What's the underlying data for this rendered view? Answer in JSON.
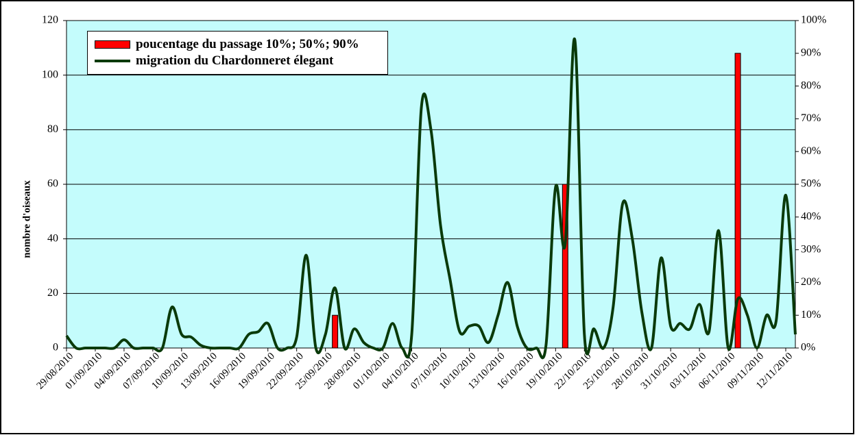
{
  "chart_data": {
    "type": "combo",
    "ylabel": "nombre d'oiseaux",
    "categories": [
      "29/08/2010",
      null,
      null,
      "01/09/2010",
      null,
      null,
      "04/09/2010",
      null,
      null,
      "07/09/2010",
      null,
      null,
      "10/09/2010",
      null,
      null,
      "13/09/2010",
      null,
      null,
      "16/09/2010",
      null,
      null,
      "19/09/2010",
      null,
      null,
      "22/09/2010",
      null,
      null,
      "25/09/2010",
      null,
      null,
      "28/09/2010",
      null,
      null,
      "01/10/2010",
      null,
      null,
      "04/10/2010",
      null,
      null,
      "07/10/2010",
      null,
      null,
      "10/10/2010",
      null,
      null,
      "13/10/2010",
      null,
      null,
      "16/10/2010",
      null,
      null,
      "19/10/2010",
      null,
      null,
      "22/10/2010",
      null,
      null,
      "25/10/2010",
      null,
      null,
      "28/10/2010",
      null,
      null,
      "31/10/2010",
      null,
      null,
      "03/11/2010",
      null,
      null,
      "06/11/2010",
      null,
      null,
      "09/11/2010",
      null,
      null,
      "12/11/2010",
      null
    ],
    "series": [
      {
        "name": "poucentage du passage 10%; 50%; 90%",
        "type": "bar",
        "axis": "y2",
        "color": "#ff0000",
        "values": [
          null,
          null,
          null,
          null,
          null,
          null,
          null,
          null,
          null,
          null,
          null,
          null,
          null,
          null,
          null,
          null,
          null,
          null,
          null,
          null,
          null,
          null,
          null,
          null,
          null,
          null,
          null,
          null,
          10,
          null,
          null,
          null,
          null,
          null,
          null,
          null,
          null,
          null,
          null,
          null,
          null,
          null,
          null,
          null,
          null,
          null,
          null,
          null,
          null,
          null,
          null,
          null,
          50,
          null,
          null,
          null,
          null,
          null,
          null,
          null,
          null,
          null,
          null,
          null,
          null,
          null,
          null,
          null,
          null,
          null,
          90,
          null,
          null,
          null,
          null,
          null,
          null
        ]
      },
      {
        "name": "migration du Chardonneret élegant",
        "type": "line",
        "color": "#0a3a0a",
        "values": [
          4.5,
          0,
          0,
          0,
          0,
          0,
          3,
          0,
          0,
          0,
          0,
          15,
          5,
          4,
          1,
          0,
          0,
          0,
          0,
          5,
          6,
          9,
          0,
          0,
          4,
          34,
          0,
          5,
          22,
          0,
          7,
          2,
          0,
          0,
          9,
          0,
          5,
          88,
          80,
          45,
          25,
          6,
          8,
          8,
          2,
          12,
          24,
          8,
          0,
          0,
          1,
          59,
          38,
          113,
          5,
          7,
          0,
          15,
          53,
          40,
          13,
          0,
          33,
          8,
          9,
          7,
          16,
          6,
          43,
          0,
          18,
          12,
          0,
          12,
          10,
          56,
          5
        ]
      }
    ],
    "ylim": [
      0,
      120
    ],
    "yticks": [
      0,
      20,
      40,
      60,
      80,
      100,
      120
    ],
    "y2lim": [
      0,
      100
    ],
    "y2ticks": [
      {
        "value": 0,
        "label": "0%"
      },
      {
        "value": 10,
        "label": "10%"
      },
      {
        "value": 20,
        "label": "20%"
      },
      {
        "value": 30,
        "label": "30%"
      },
      {
        "value": 40,
        "label": "40%"
      },
      {
        "value": 50,
        "label": "50%"
      },
      {
        "value": 60,
        "label": "60%"
      },
      {
        "value": 70,
        "label": "70%"
      },
      {
        "value": 80,
        "label": "80%"
      },
      {
        "value": 90,
        "label": "90%"
      },
      {
        "value": 100,
        "label": "100%"
      }
    ],
    "grid": true,
    "background": "#c4fcfc",
    "legend": "top-left"
  }
}
